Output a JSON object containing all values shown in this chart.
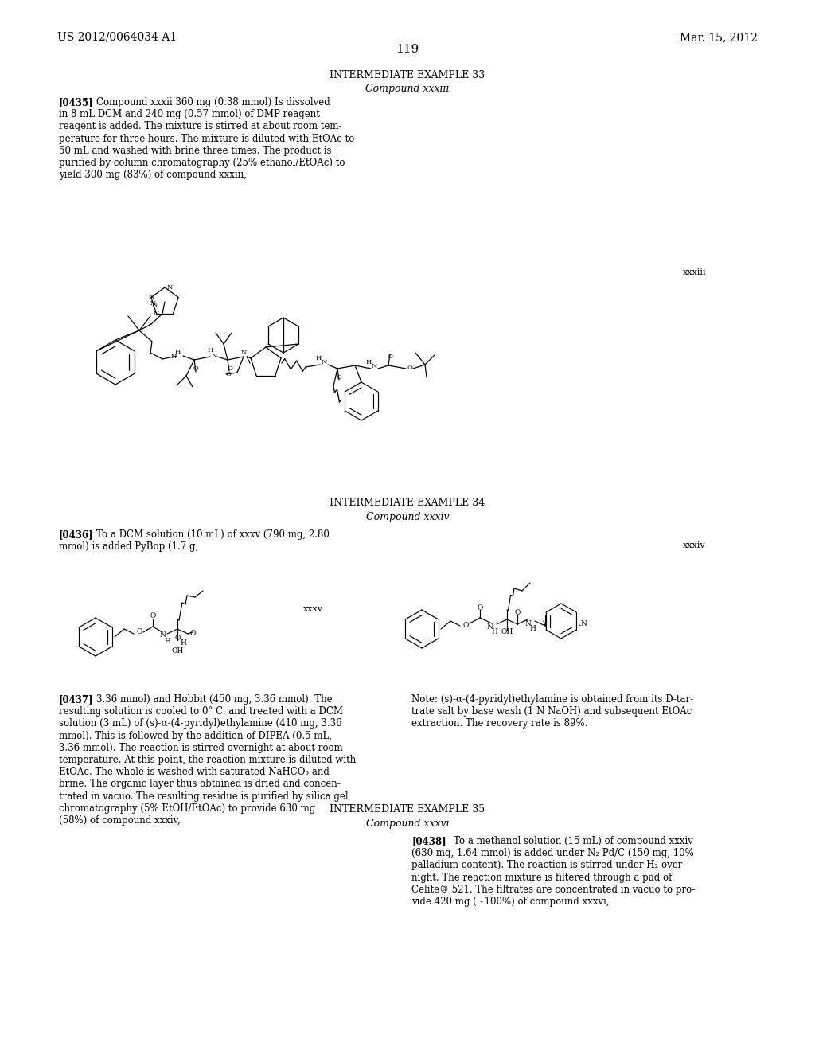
{
  "background_color": "#ffffff",
  "header_left": "US 2012/0064034 A1",
  "header_right": "Mar. 15, 2012",
  "page_number": "119",
  "font_size_header": 10,
  "font_size_page": 11,
  "font_size_section_title": 9,
  "font_size_body": 8.5,
  "font_size_label": 8,
  "font_size_chem": 7,
  "lh": 0.0138,
  "section1_title": "INTERMEDIATE EXAMPLE 33",
  "section1_subtitle": "Compound xxxiii",
  "section1_label": "xxxiii",
  "p435_label": "[0435]",
  "p435_lines": [
    "Compound xxxii 360 mg (0.38 mmol) Is dissolved",
    "in 8 mL DCM and 240 mg (0.57 mmol) of DMP reagent",
    "reagent is added. The mixture is stirred at about room tem-",
    "perature for three hours. The mixture is diluted with EtOAc to",
    "50 mL and washed with brine three times. The product is",
    "purified by column chromatography (25% ethanol/EtOAc) to",
    "yield 300 mg (83%) of compound xxxiii,"
  ],
  "section2_title": "INTERMEDIATE EXAMPLE 34",
  "section2_subtitle": "Compound xxxiv",
  "section2_label": "xxxiv",
  "section2_label2": "xxxv",
  "p436_label": "[0436]",
  "p436_lines": [
    "To a DCM solution (10 mL) of xxxv (790 mg, 2.80",
    "mmol) is added PyBop (1.7 g,"
  ],
  "p437_label": "[0437]",
  "p437_lines": [
    "3.36 mmol) and Hobbit (450 mg, 3.36 mmol). The",
    "resulting solution is cooled to 0° C. and treated with a DCM",
    "solution (3 mL) of (s)-α-(4-pyridyl)ethylamine (410 mg, 3.36",
    "mmol). This is followed by the addition of DIPEA (0.5 mL,",
    "3.36 mmol). The reaction is stirred overnight at about room",
    "temperature. At this point, the reaction mixture is diluted with",
    "EtOAc. The whole is washed with saturated NaHCO₃ and",
    "brine. The organic layer thus obtained is dried and concen-",
    "trated in vacuo. The resulting residue is purified by silica gel",
    "chromatography (5% EtOH/EtOAc) to provide 630 mg",
    "(58%) of compound xxxiv,"
  ],
  "note_lines": [
    "Note: (s)-α-(4-pyridyl)ethylamine is obtained from its D-tar-",
    "trate salt by base wash (1 N NaOH) and subsequent EtOAc",
    "extraction. The recovery rate is 89%."
  ],
  "section3_title": "INTERMEDIATE EXAMPLE 35",
  "section3_subtitle": "Compound xxxvi",
  "p438_label": "[0438]",
  "p438_lines": [
    "To a methanol solution (15 mL) of compound xxxiv",
    "(630 mg, 1.64 mmol) is added under N₂ Pd/C (150 mg, 10%",
    "palladium content). The reaction is stirred under H₂ over-",
    "night. The reaction mixture is filtered through a pad of",
    "Celite® 521. The filtrates are concentrated in vacuo to pro-",
    "vide 420 mg (~100%) of compound xxxvi,"
  ]
}
